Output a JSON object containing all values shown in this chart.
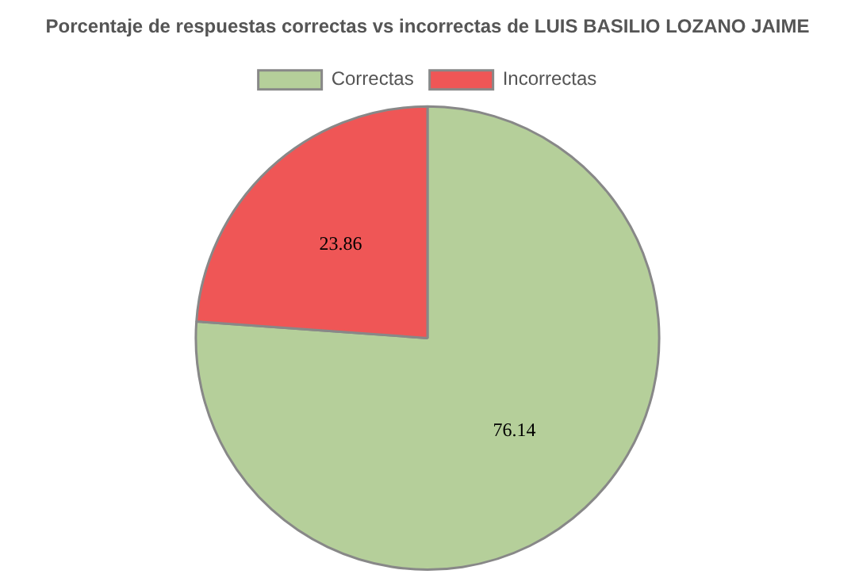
{
  "chart_data": {
    "type": "pie",
    "title": "Porcentaje de respuestas correctas vs incorrectas de LUIS BASILIO LOZANO JAIME",
    "categories": [
      "Correctas",
      "Incorrectas"
    ],
    "values": [
      76.14,
      23.86
    ],
    "colors": [
      "#b5cf9a",
      "#ef5656"
    ],
    "data_labels": true,
    "legend": "top"
  }
}
